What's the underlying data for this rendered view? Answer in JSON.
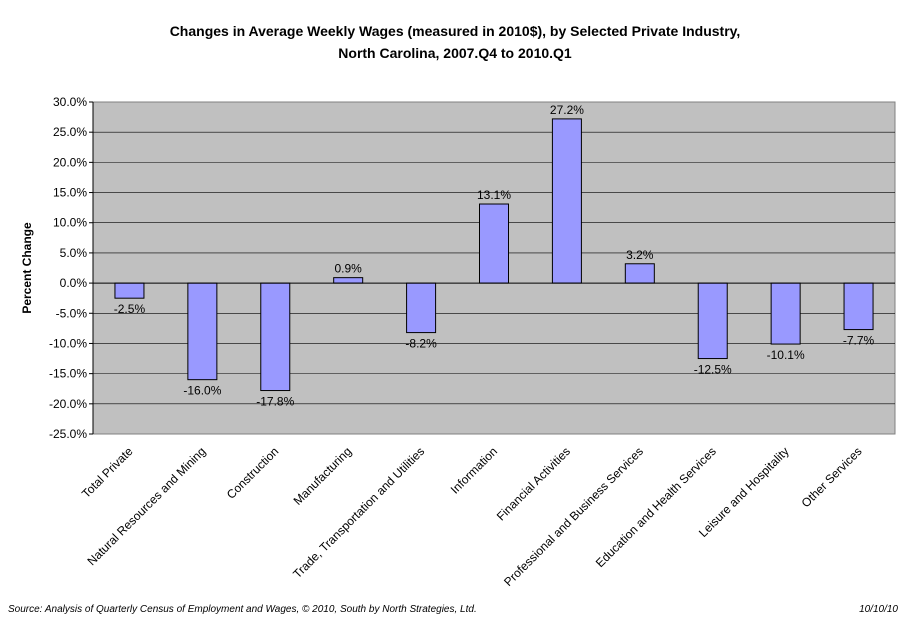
{
  "chart_data": {
    "type": "bar",
    "title_line1": "Changes in Average Weekly Wages (measured in 2010$), by Selected Private Industry,",
    "title_line2": "North Carolina, 2007.Q4 to 2010.Q1",
    "xlabel": "",
    "ylabel": "Percent Change",
    "ylim": [
      -25,
      30
    ],
    "ytick_step": 5,
    "grid": true,
    "legend": "none",
    "categories": [
      "Total Private",
      "Natural Resources and Mining",
      "Construction",
      "Manufacturing",
      "Trade, Transportation and Utilities",
      "Information",
      "Financial Activities",
      "Professional and Business Services",
      "Education and Health Services",
      "Leisure and Hospitality",
      "Other Services"
    ],
    "values": [
      -2.5,
      -16.0,
      -17.8,
      0.9,
      -8.2,
      13.1,
      27.2,
      3.2,
      -12.5,
      -10.1,
      -7.7
    ],
    "data_labels": [
      "-2.5%",
      "-16.0%",
      "-17.8%",
      "0.9%",
      "-8.2%",
      "13.1%",
      "27.2%",
      "3.2%",
      "-12.5%",
      "-10.1%",
      "-7.7%"
    ],
    "ytick_labels": [
      "30.0%",
      "25.0%",
      "20.0%",
      "15.0%",
      "10.0%",
      "5.0%",
      "0.0%",
      "-5.0%",
      "-10.0%",
      "-15.0%",
      "-20.0%",
      "-25.0%"
    ],
    "colors": {
      "bar_fill": "#9999ff",
      "bar_stroke": "#000000",
      "plot_background": "#c0c0c0",
      "gridline": "#000000"
    }
  },
  "footer": {
    "source": "Source: Analysis of Quarterly Census of Employment and Wages, © 2010, South by North Strategies, Ltd.",
    "date": "10/10/10"
  }
}
